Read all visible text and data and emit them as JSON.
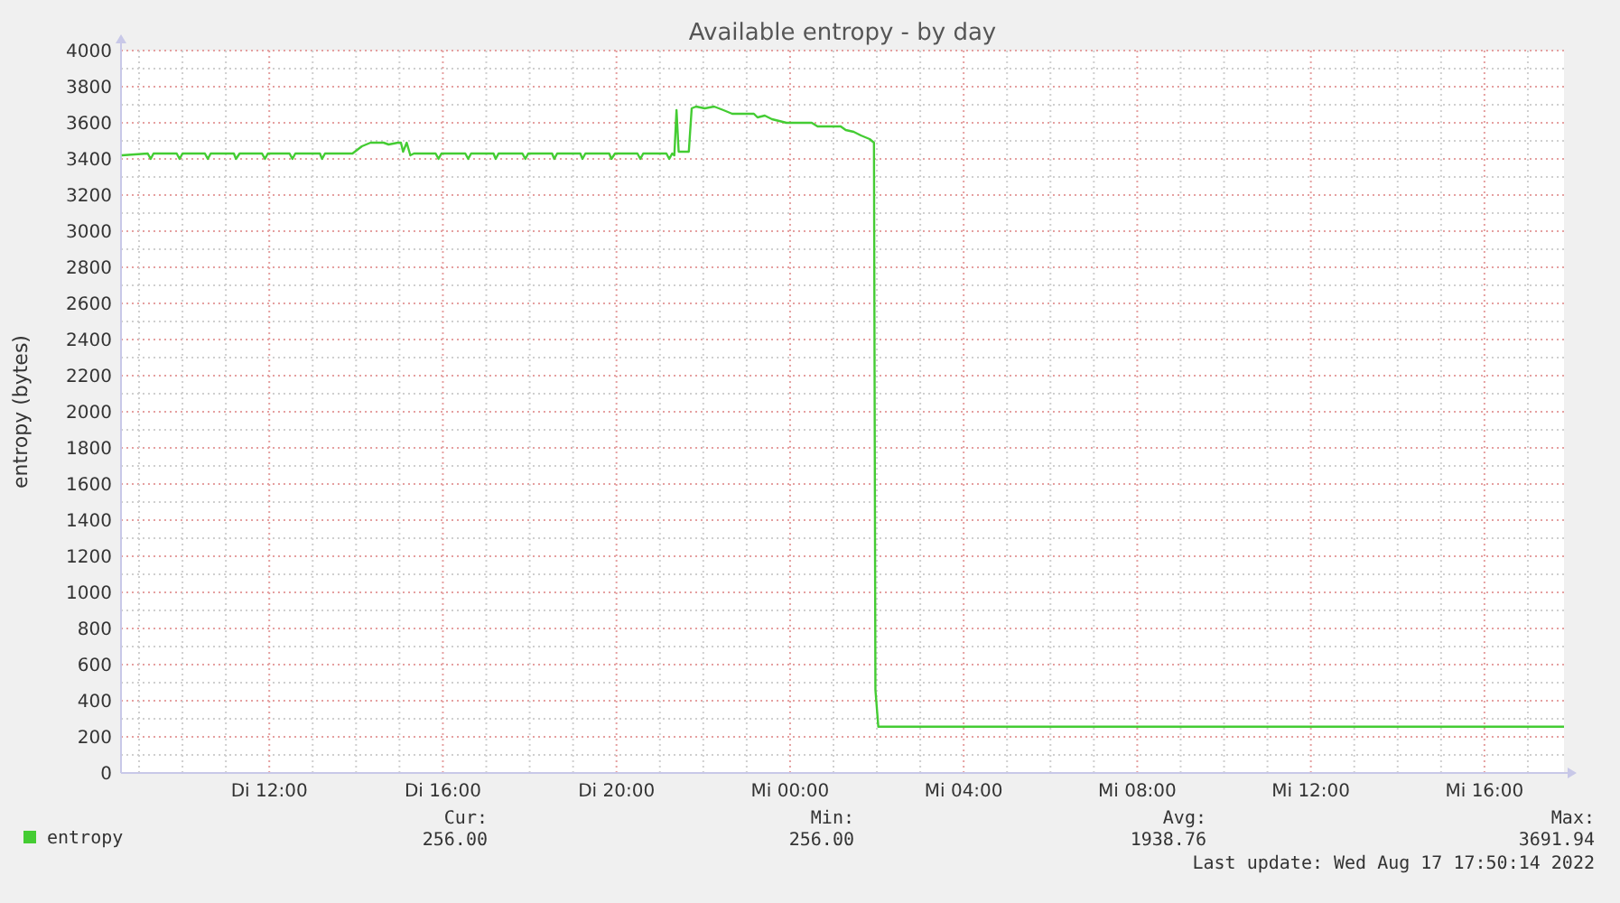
{
  "chart_data": {
    "type": "line",
    "title": "Available entropy - by day",
    "ylabel": "entropy (bytes)",
    "xlim": [
      "2022-08-16T08:35",
      "2022-08-17T17:50"
    ],
    "ylim": [
      0,
      4000
    ],
    "xticks": [
      {
        "value": "2022-08-16T09:00",
        "label": null
      },
      {
        "value": "2022-08-16T10:00",
        "label": null
      },
      {
        "value": "2022-08-16T11:00",
        "label": null
      },
      {
        "value": "2022-08-16T12:00",
        "label": "Di 12:00"
      },
      {
        "value": "2022-08-16T13:00",
        "label": null
      },
      {
        "value": "2022-08-16T14:00",
        "label": null
      },
      {
        "value": "2022-08-16T15:00",
        "label": null
      },
      {
        "value": "2022-08-16T16:00",
        "label": "Di 16:00"
      },
      {
        "value": "2022-08-16T17:00",
        "label": null
      },
      {
        "value": "2022-08-16T18:00",
        "label": null
      },
      {
        "value": "2022-08-16T19:00",
        "label": null
      },
      {
        "value": "2022-08-16T20:00",
        "label": "Di 20:00"
      },
      {
        "value": "2022-08-16T21:00",
        "label": null
      },
      {
        "value": "2022-08-16T22:00",
        "label": null
      },
      {
        "value": "2022-08-16T23:00",
        "label": null
      },
      {
        "value": "2022-08-17T00:00",
        "label": "Mi 00:00"
      },
      {
        "value": "2022-08-17T01:00",
        "label": null
      },
      {
        "value": "2022-08-17T02:00",
        "label": null
      },
      {
        "value": "2022-08-17T03:00",
        "label": null
      },
      {
        "value": "2022-08-17T04:00",
        "label": "Mi 04:00"
      },
      {
        "value": "2022-08-17T05:00",
        "label": null
      },
      {
        "value": "2022-08-17T06:00",
        "label": null
      },
      {
        "value": "2022-08-17T07:00",
        "label": null
      },
      {
        "value": "2022-08-17T08:00",
        "label": "Mi 08:00"
      },
      {
        "value": "2022-08-17T09:00",
        "label": null
      },
      {
        "value": "2022-08-17T10:00",
        "label": null
      },
      {
        "value": "2022-08-17T11:00",
        "label": null
      },
      {
        "value": "2022-08-17T12:00",
        "label": "Mi 12:00"
      },
      {
        "value": "2022-08-17T13:00",
        "label": null
      },
      {
        "value": "2022-08-17T14:00",
        "label": null
      },
      {
        "value": "2022-08-17T15:00",
        "label": null
      },
      {
        "value": "2022-08-17T16:00",
        "label": "Mi 16:00"
      },
      {
        "value": "2022-08-17T17:00",
        "label": null
      }
    ],
    "yticks": [
      0,
      {
        "value": 100,
        "label": null
      },
      200,
      {
        "value": 300,
        "label": null
      },
      400,
      {
        "value": 500,
        "label": null
      },
      600,
      {
        "value": 700,
        "label": null
      },
      800,
      {
        "value": 900,
        "label": null
      },
      1000,
      {
        "value": 1100,
        "label": null
      },
      1200,
      {
        "value": 1300,
        "label": null
      },
      1400,
      {
        "value": 1500,
        "label": null
      },
      1600,
      {
        "value": 1700,
        "label": null
      },
      1800,
      {
        "value": 1900,
        "label": null
      },
      2000,
      {
        "value": 2100,
        "label": null
      },
      2200,
      {
        "value": 2300,
        "label": null
      },
      2400,
      {
        "value": 2500,
        "label": null
      },
      2600,
      {
        "value": 2700,
        "label": null
      },
      2800,
      {
        "value": 2900,
        "label": null
      },
      3000,
      {
        "value": 3100,
        "label": null
      },
      3200,
      {
        "value": 3300,
        "label": null
      },
      3400,
      {
        "value": 3500,
        "label": null
      },
      3600,
      {
        "value": 3700,
        "label": null
      },
      3800,
      {
        "value": 3900,
        "label": null
      },
      4000
    ],
    "grid": true,
    "legend": "bottom left",
    "marker": "none",
    "line_style": "solid",
    "series": [
      {
        "name": "entropy",
        "color": "#44cc33",
        "x": [
          "2022-08-16T08:36",
          "2022-08-16T09:12",
          "2022-08-16T09:16",
          "2022-08-16T09:20",
          "2022-08-16T09:52",
          "2022-08-16T09:56",
          "2022-08-16T10:00",
          "2022-08-16T10:31",
          "2022-08-16T10:35",
          "2022-08-16T10:39",
          "2022-08-16T11:11",
          "2022-08-16T11:14",
          "2022-08-16T11:19",
          "2022-08-16T11:50",
          "2022-08-16T11:54",
          "2022-08-16T11:58",
          "2022-08-16T12:28",
          "2022-08-16T12:32",
          "2022-08-16T12:36",
          "2022-08-16T13:10",
          "2022-08-16T13:13",
          "2022-08-16T13:17",
          "2022-08-16T13:55",
          "2022-08-16T14:08",
          "2022-08-16T14:20",
          "2022-08-16T14:38",
          "2022-08-16T14:45",
          "2022-08-16T14:58",
          "2022-08-16T15:02",
          "2022-08-16T15:05",
          "2022-08-16T15:10",
          "2022-08-16T15:15",
          "2022-08-16T15:20",
          "2022-08-16T15:50",
          "2022-08-16T15:54",
          "2022-08-16T15:58",
          "2022-08-16T16:31",
          "2022-08-16T16:35",
          "2022-08-16T16:39",
          "2022-08-16T17:10",
          "2022-08-16T17:13",
          "2022-08-16T17:17",
          "2022-08-16T17:50",
          "2022-08-16T17:54",
          "2022-08-16T17:58",
          "2022-08-16T18:31",
          "2022-08-16T18:34",
          "2022-08-16T18:38",
          "2022-08-16T19:10",
          "2022-08-16T19:13",
          "2022-08-16T19:17",
          "2022-08-16T19:50",
          "2022-08-16T19:53",
          "2022-08-16T19:58",
          "2022-08-16T20:29",
          "2022-08-16T20:33",
          "2022-08-16T20:37",
          "2022-08-16T21:09",
          "2022-08-16T21:13",
          "2022-08-16T21:17",
          "2022-08-16T21:20",
          "2022-08-16T21:23",
          "2022-08-16T21:26",
          "2022-08-16T21:40",
          "2022-08-16T21:44",
          "2022-08-16T21:50",
          "2022-08-16T22:02",
          "2022-08-16T22:15",
          "2022-08-16T22:28",
          "2022-08-16T22:40",
          "2022-08-16T23:10",
          "2022-08-16T23:15",
          "2022-08-16T23:25",
          "2022-08-16T23:35",
          "2022-08-16T23:55",
          "2022-08-17T00:30",
          "2022-08-17T00:38",
          "2022-08-17T01:10",
          "2022-08-17T01:17",
          "2022-08-17T01:28",
          "2022-08-17T01:38",
          "2022-08-17T01:50",
          "2022-08-17T01:56",
          "2022-08-17T01:58",
          "2022-08-17T02:02",
          "2022-08-17T17:50"
        ],
        "values": [
          3420,
          3430,
          3400,
          3430,
          3430,
          3400,
          3430,
          3430,
          3400,
          3430,
          3430,
          3400,
          3430,
          3430,
          3400,
          3430,
          3430,
          3400,
          3430,
          3430,
          3400,
          3430,
          3430,
          3470,
          3490,
          3490,
          3480,
          3490,
          3490,
          3440,
          3490,
          3420,
          3430,
          3430,
          3400,
          3430,
          3430,
          3400,
          3430,
          3430,
          3400,
          3430,
          3430,
          3400,
          3430,
          3430,
          3400,
          3430,
          3430,
          3400,
          3430,
          3430,
          3400,
          3430,
          3430,
          3400,
          3430,
          3430,
          3400,
          3430,
          3420,
          3670,
          3440,
          3440,
          3680,
          3690,
          3680,
          3690,
          3670,
          3650,
          3650,
          3630,
          3640,
          3620,
          3600,
          3600,
          3580,
          3580,
          3560,
          3550,
          3530,
          3510,
          3490,
          460,
          256,
          256
        ]
      }
    ],
    "annotations": [
      "Cur:",
      "256.00",
      "Min:",
      "256.00",
      "Avg:",
      "1938.76",
      "Max:",
      "3691.94",
      "Last update: Wed Aug 17 17:50:14 2022"
    ]
  }
}
